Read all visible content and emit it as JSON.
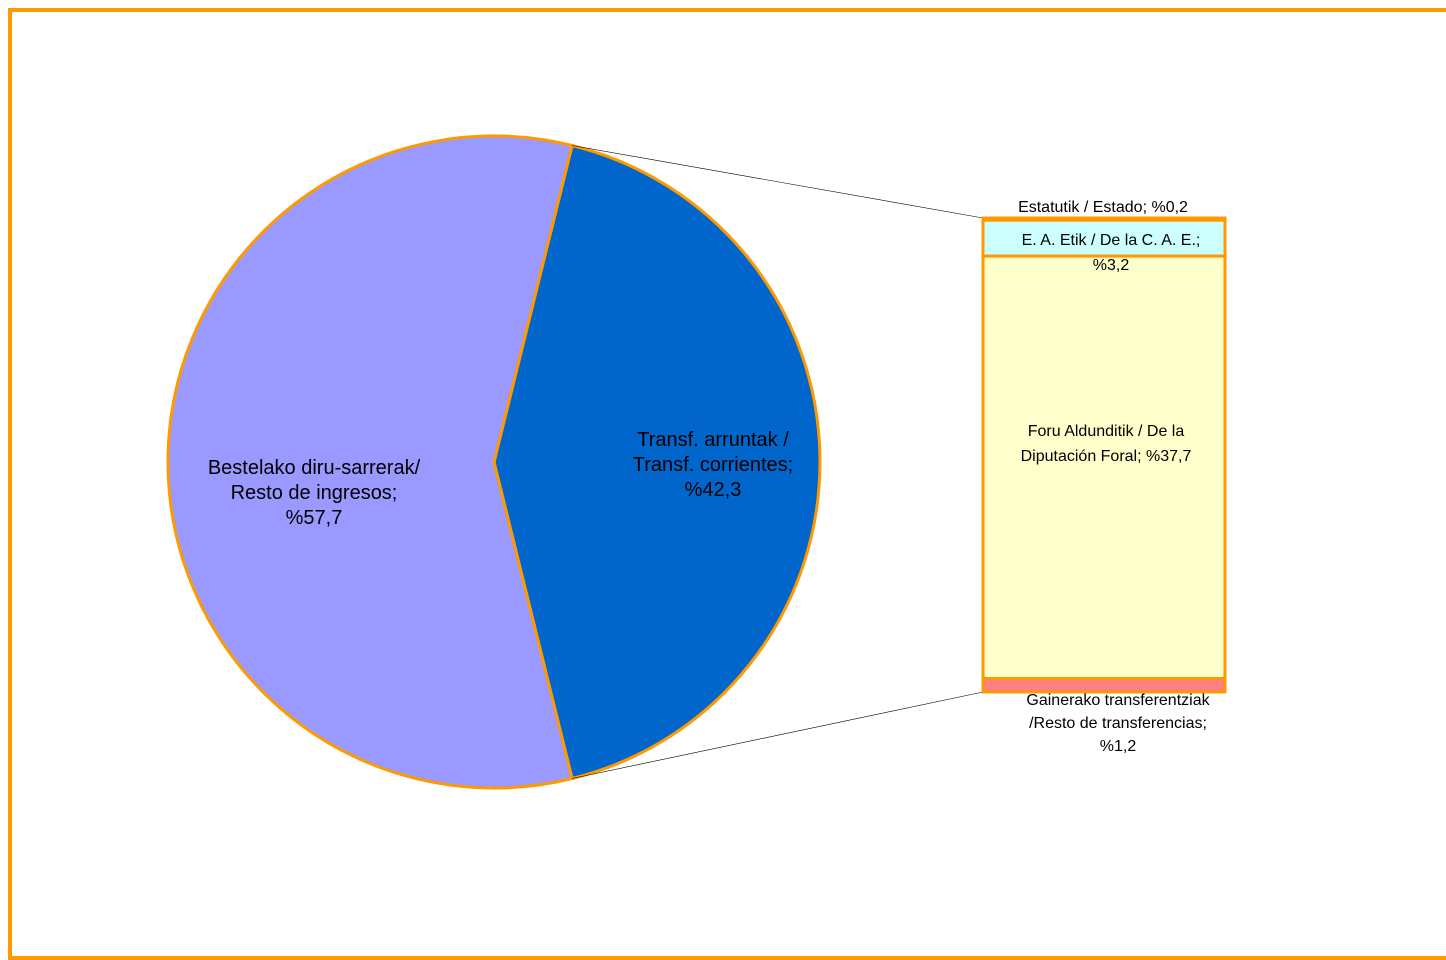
{
  "chart_data": {
    "type": "bar-of-pie",
    "pie": {
      "slices": [
        {
          "label_lines": [
            "Transf. arruntak /",
            "Transf. corrientes;",
            "%42,3"
          ],
          "value": 42.3,
          "color": "#0066cc"
        },
        {
          "label_lines": [
            "Bestelako diru-sarrerak/",
            "Resto de ingresos;",
            "%57,7"
          ],
          "value": 57.7,
          "color": "#9999ff"
        }
      ],
      "border_color": "#ff9900"
    },
    "bar": {
      "segments": [
        {
          "label_lines": [
            "Estatutik /  Estado; %0,2"
          ],
          "value": 0.2,
          "color": "#ffffff"
        },
        {
          "label_lines": [
            "E. A. Etik / De la C. A. E.;",
            "%3,2"
          ],
          "value": 3.2,
          "color": "#ccffff"
        },
        {
          "label_lines": [
            "Foru Aldunditik / De la",
            "Diputación Foral; %37,7"
          ],
          "value": 37.7,
          "color": "#ffffcc"
        },
        {
          "label_lines": [
            "Gainerako transferentziak",
            "/Resto de transferencias;",
            "%1,2"
          ],
          "value": 1.2,
          "color": "#ff8080"
        }
      ],
      "border_color": "#ff9900"
    },
    "frame_color": "#ff9900"
  }
}
